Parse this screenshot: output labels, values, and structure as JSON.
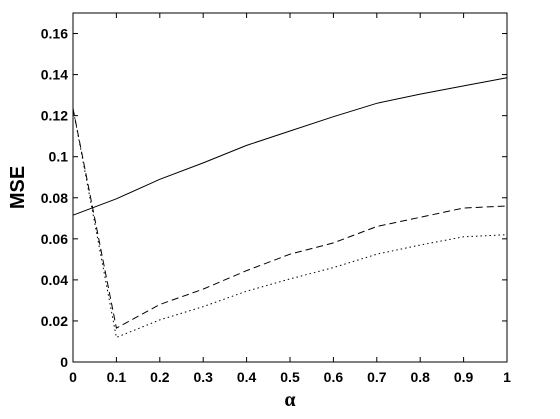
{
  "chart_data": {
    "type": "line",
    "title": "",
    "xlabel": "α",
    "ylabel": "MSE",
    "xlim": [
      0,
      1
    ],
    "ylim": [
      0,
      0.17
    ],
    "x_ticks": [
      0,
      0.1,
      0.2,
      0.3,
      0.4,
      0.5,
      0.6,
      0.7,
      0.8,
      0.9,
      1
    ],
    "x_tick_labels": [
      "0",
      "0.1",
      "0.2",
      "0.3",
      "0.4",
      "0.5",
      "0.6",
      "0.7",
      "0.8",
      "0.9",
      "1"
    ],
    "y_ticks": [
      0,
      0.02,
      0.04,
      0.06,
      0.08,
      0.1,
      0.12,
      0.14,
      0.16
    ],
    "y_tick_labels": [
      "0",
      "0.02",
      "0.04",
      "0.06",
      "0.08",
      "0.1",
      "0.12",
      "0.14",
      "0.16"
    ],
    "grid": false,
    "legend": "none",
    "x": [
      0,
      0.1,
      0.2,
      0.3,
      0.4,
      0.5,
      0.6,
      0.7,
      0.8,
      0.9,
      1
    ],
    "series": [
      {
        "style": "solid",
        "color": "#000000",
        "values": [
          0.0715,
          0.0795,
          0.089,
          0.097,
          0.1055,
          0.1125,
          0.1195,
          0.126,
          0.1305,
          0.1345,
          0.1385
        ]
      },
      {
        "style": "dashed",
        "color": "#000000",
        "values": [
          0.1235,
          0.0165,
          0.028,
          0.0355,
          0.0445,
          0.0525,
          0.058,
          0.066,
          0.0705,
          0.075,
          0.076
        ]
      },
      {
        "style": "dotted",
        "color": "#000000",
        "values": [
          0.1235,
          0.012,
          0.0205,
          0.027,
          0.0345,
          0.0405,
          0.046,
          0.0525,
          0.057,
          0.061,
          0.062
        ]
      }
    ]
  }
}
